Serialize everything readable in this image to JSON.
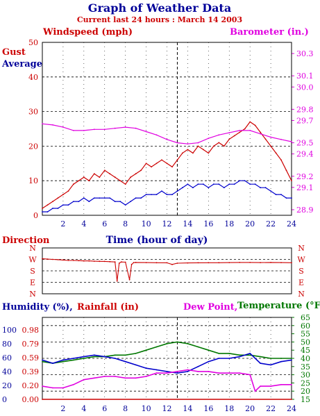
{
  "page": {
    "title": "Graph of Weather Data",
    "subtitle": "Current last 24 hours : March 14 2003"
  },
  "colors": {
    "navy": "#000099",
    "red": "#cc0000",
    "magenta": "#e000e0",
    "green": "#007700",
    "blue": "#0000cc",
    "gridline": "#000000"
  },
  "chart_data": [
    {
      "id": "wind-pressure",
      "type": "line",
      "labels": {
        "windspeed": "Windspeed (mph)",
        "barometer": "Barometer (in.)",
        "gust": "Gust",
        "average": "Average",
        "xlabel": "Time (hour of day)"
      },
      "xlim": [
        0,
        24
      ],
      "x_ticks": [
        2,
        4,
        6,
        8,
        10,
        12,
        14,
        16,
        18,
        20,
        22,
        24
      ],
      "ylim_left": [
        0,
        50
      ],
      "y_ticks_left": [
        0,
        10,
        20,
        30,
        40,
        50
      ],
      "ylim_right": [
        28.85,
        30.4
      ],
      "y_ticks_right": [
        28.9,
        29.1,
        29.2,
        29.4,
        29.5,
        29.7,
        29.8,
        30.0,
        30.1,
        30.3
      ],
      "marker_hour": 13,
      "grid": true,
      "series": [
        {
          "name": "Gust",
          "axis": "left",
          "color": "#cc0000",
          "x": [
            0,
            0.5,
            1,
            1.5,
            2,
            2.5,
            3,
            3.5,
            4,
            4.5,
            5,
            5.5,
            6,
            6.5,
            7,
            7.5,
            8,
            8.5,
            9,
            9.5,
            10,
            10.5,
            11,
            11.5,
            12,
            12.5,
            13,
            13.5,
            14,
            14.5,
            15,
            15.5,
            16,
            16.5,
            17,
            17.5,
            18,
            18.5,
            19,
            19.5,
            20,
            20.5,
            21,
            21.5,
            22,
            22.5,
            23,
            23.5,
            24
          ],
          "values": [
            2,
            3,
            4,
            5,
            6,
            7,
            9,
            10,
            11,
            10,
            12,
            11,
            13,
            12,
            11,
            10,
            9,
            11,
            12,
            13,
            15,
            14,
            15,
            16,
            15,
            14,
            16,
            18,
            19,
            18,
            20,
            19,
            18,
            20,
            21,
            20,
            22,
            23,
            24,
            25,
            27,
            26,
            24,
            22,
            20,
            18,
            16,
            13,
            10
          ]
        },
        {
          "name": "Average",
          "axis": "left",
          "color": "#0000cc",
          "x": [
            0,
            0.5,
            1,
            1.5,
            2,
            2.5,
            3,
            3.5,
            4,
            4.5,
            5,
            5.5,
            6,
            6.5,
            7,
            7.5,
            8,
            8.5,
            9,
            9.5,
            10,
            10.5,
            11,
            11.5,
            12,
            12.5,
            13,
            13.5,
            14,
            14.5,
            15,
            15.5,
            16,
            16.5,
            17,
            17.5,
            18,
            18.5,
            19,
            19.5,
            20,
            20.5,
            21,
            21.5,
            22,
            22.5,
            23,
            23.5,
            24
          ],
          "values": [
            1,
            1,
            2,
            2,
            3,
            3,
            4,
            4,
            5,
            4,
            5,
            5,
            5,
            5,
            4,
            4,
            3,
            4,
            5,
            5,
            6,
            6,
            6,
            7,
            6,
            6,
            7,
            8,
            9,
            8,
            9,
            9,
            8,
            9,
            9,
            8,
            9,
            9,
            10,
            10,
            9,
            9,
            8,
            8,
            7,
            6,
            6,
            5,
            5
          ]
        },
        {
          "name": "Barometer",
          "axis": "right",
          "color": "#e000e0",
          "x": [
            0,
            1,
            2,
            3,
            4,
            5,
            6,
            7,
            8,
            9,
            10,
            11,
            12,
            13,
            14,
            15,
            16,
            17,
            18,
            19,
            20,
            21,
            22,
            23,
            24
          ],
          "values": [
            29.67,
            29.66,
            29.64,
            29.61,
            29.61,
            29.62,
            29.62,
            29.63,
            29.64,
            29.63,
            29.6,
            29.57,
            29.53,
            29.5,
            29.49,
            29.5,
            29.54,
            29.57,
            29.59,
            29.61,
            29.61,
            29.58,
            29.55,
            29.53,
            29.51
          ]
        }
      ]
    },
    {
      "id": "direction",
      "type": "line",
      "labels": {
        "title": "Direction"
      },
      "xlim": [
        0,
        24
      ],
      "categories": [
        "N",
        "W",
        "S",
        "E",
        "N"
      ],
      "ylim": [
        0,
        360
      ],
      "series": [
        {
          "name": "Direction",
          "color": "#cc0000",
          "x": [
            0,
            0.5,
            1,
            1.5,
            2,
            2.5,
            3,
            3.5,
            4,
            4.5,
            5,
            5.5,
            6,
            6.5,
            7,
            7.2,
            7.4,
            7.6,
            8,
            8.4,
            8.6,
            8.8,
            9,
            10,
            11,
            12,
            12.5,
            13,
            14,
            15,
            16,
            17,
            18,
            19,
            20,
            21,
            22,
            23,
            24
          ],
          "values": [
            275,
            272,
            270,
            268,
            265,
            262,
            262,
            260,
            258,
            258,
            256,
            255,
            254,
            252,
            250,
            100,
            240,
            250,
            248,
            110,
            230,
            245,
            246,
            245,
            244,
            243,
            230,
            240,
            242,
            243,
            244,
            244,
            245,
            246,
            246,
            245,
            246,
            245,
            244
          ]
        }
      ]
    },
    {
      "id": "humidity-rain-dew-temp",
      "type": "line",
      "labels": {
        "humidity": "Humidity (%),",
        "rainfall": "Rainfall (in)",
        "dewpoint": "Dew Point,",
        "temperature": "Temperature (°F)"
      },
      "xlim": [
        0,
        24
      ],
      "x_ticks": [
        2,
        4,
        6,
        8,
        10,
        12,
        14,
        16,
        18,
        20,
        22,
        24
      ],
      "humidity_ticks": [
        0,
        20,
        40,
        60,
        80,
        100
      ],
      "rainfall_ticks": [
        "0.00",
        "0.20",
        "0.39",
        "0.59",
        "0.79",
        "0.98"
      ],
      "temp_ticks": [
        15,
        20,
        25,
        30,
        35,
        40,
        45,
        50,
        55,
        60,
        65
      ],
      "ylim_temp": [
        15,
        65
      ],
      "marker_hour": 13,
      "grid": true,
      "series": [
        {
          "name": "Temperature",
          "axis": "temp",
          "color": "#007700",
          "x": [
            0,
            1,
            2,
            3,
            4,
            5,
            6,
            7,
            8,
            9,
            10,
            11,
            12,
            13,
            14,
            15,
            16,
            17,
            18,
            19,
            20,
            21,
            22,
            23,
            24
          ],
          "values": [
            38,
            37,
            38,
            39,
            40,
            41,
            41,
            42,
            42,
            43,
            45,
            47,
            49,
            50,
            49,
            47,
            45,
            43,
            43,
            42,
            42,
            41,
            40,
            40,
            40
          ]
        },
        {
          "name": "Humidity",
          "axis": "temp",
          "color": "#0000cc",
          "x": [
            0,
            1,
            2,
            3,
            4,
            5,
            6,
            7,
            8,
            9,
            10,
            11,
            12,
            13,
            14,
            15,
            16,
            17,
            18,
            19,
            20,
            21,
            22,
            23,
            24
          ],
          "values": [
            39,
            37,
            39,
            40,
            41,
            42,
            41,
            40,
            38,
            36,
            34,
            33,
            32,
            31,
            32,
            35,
            38,
            40,
            40,
            41,
            43,
            37,
            36,
            38,
            39
          ]
        },
        {
          "name": "Dew Point",
          "axis": "temp",
          "color": "#e000e0",
          "x": [
            0,
            1,
            2,
            3,
            4,
            5,
            6,
            7,
            8,
            9,
            10,
            11,
            12,
            13,
            14,
            15,
            16,
            17,
            18,
            19,
            20,
            20.5,
            21,
            22,
            23,
            24
          ],
          "values": [
            23,
            22,
            22,
            24,
            27,
            28,
            29,
            29,
            28,
            28,
            29,
            31,
            31,
            32,
            33,
            32,
            32,
            31,
            31,
            31,
            30,
            20,
            23,
            23,
            24,
            24
          ]
        },
        {
          "name": "Rainfall",
          "axis": "temp",
          "color": "#cc0000",
          "x": [
            0,
            24
          ],
          "values": [
            15,
            15
          ]
        }
      ]
    }
  ]
}
